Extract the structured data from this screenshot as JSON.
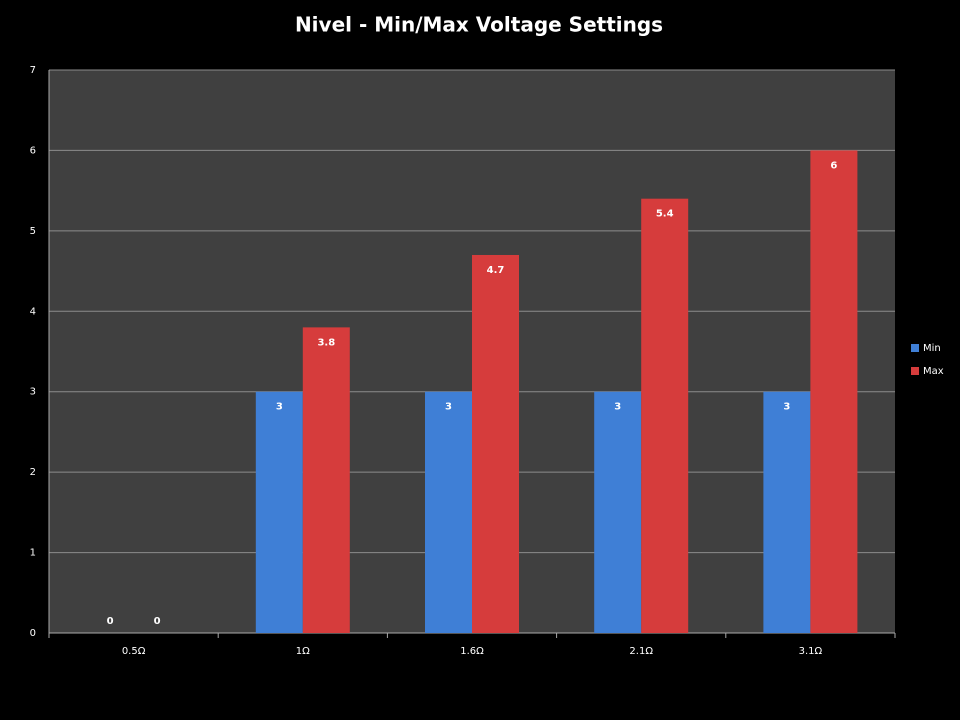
{
  "chart_data": {
    "type": "bar",
    "title": "Nivel - Min/Max Voltage Settings",
    "categories": [
      "0.5Ω",
      "1Ω",
      "1.6Ω",
      "2.1Ω",
      "3.1Ω"
    ],
    "series": [
      {
        "name": "Min",
        "color": "#3f7fd6",
        "values": [
          0,
          3,
          3,
          3,
          3
        ]
      },
      {
        "name": "Max",
        "color": "#d63c3c",
        "values": [
          0,
          3.8,
          4.7,
          5.4,
          6
        ]
      }
    ],
    "ylim": [
      0,
      7
    ],
    "yticks": [
      0,
      1,
      2,
      3,
      4,
      5,
      6,
      7
    ],
    "grid": true,
    "legend": "right"
  }
}
